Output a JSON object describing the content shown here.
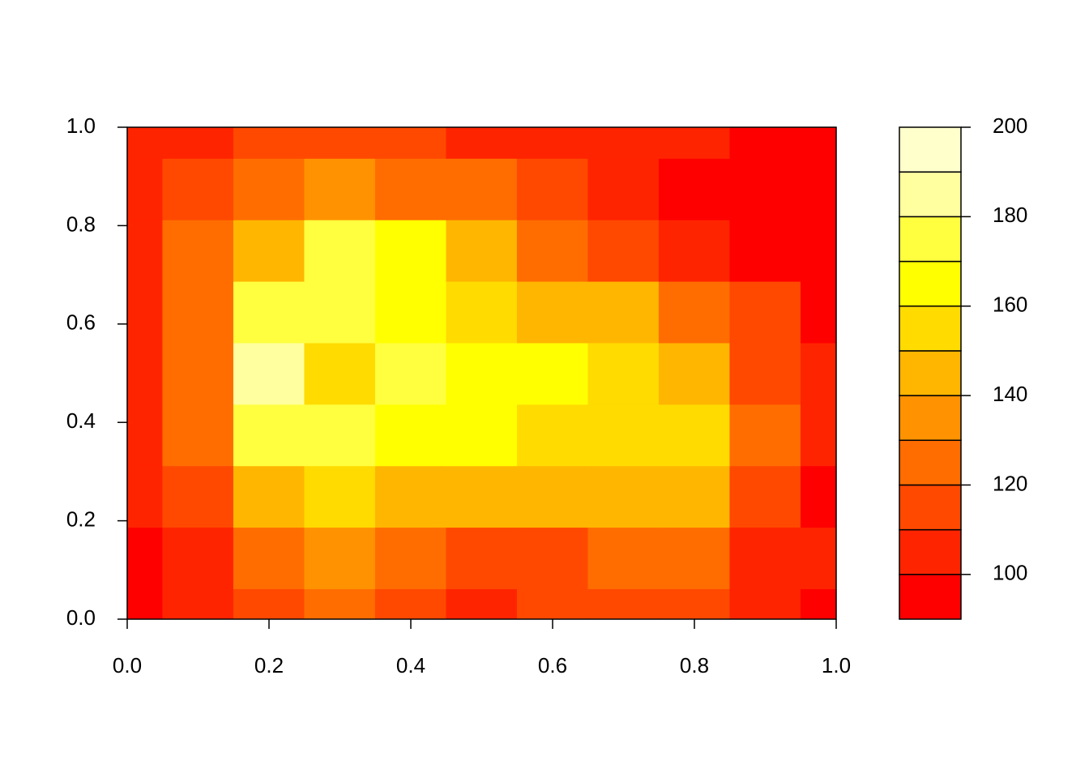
{
  "chart_data": {
    "type": "filled-contour",
    "x": [
      0,
      0.1,
      0.2,
      0.3,
      0.4,
      0.5,
      0.6,
      0.7,
      0.8,
      0.9,
      1
    ],
    "y": [
      0,
      0.125,
      0.25,
      0.375,
      0.5,
      0.625,
      0.75,
      0.875,
      1
    ],
    "z": [
      [
        98,
        105,
        112,
        120,
        112,
        105,
        110,
        112,
        110,
        100,
        95
      ],
      [
        98,
        105,
        125,
        138,
        128,
        112,
        118,
        125,
        125,
        108,
        102
      ],
      [
        100,
        118,
        140,
        150,
        145,
        142,
        142,
        148,
        145,
        118,
        98
      ],
      [
        105,
        125,
        178,
        178,
        168,
        160,
        155,
        152,
        150,
        125,
        105
      ],
      [
        105,
        128,
        188,
        158,
        178,
        168,
        165,
        155,
        140,
        118,
        105
      ],
      [
        108,
        128,
        175,
        172,
        168,
        158,
        145,
        140,
        125,
        110,
        98
      ],
      [
        108,
        122,
        145,
        172,
        165,
        140,
        125,
        118,
        108,
        98,
        95
      ],
      [
        105,
        112,
        122,
        132,
        128,
        120,
        112,
        105,
        98,
        95,
        95
      ],
      [
        105,
        105,
        112,
        118,
        115,
        108,
        105,
        105,
        100,
        95,
        95
      ]
    ],
    "levels": [
      90,
      100,
      110,
      120,
      130,
      140,
      150,
      160,
      170,
      180,
      190,
      200
    ],
    "colors": [
      "#FF0000",
      "#FF2400",
      "#FF4900",
      "#FF6D00",
      "#FF9200",
      "#FFB600",
      "#FFDB00",
      "#FFFF00",
      "#FFFF40",
      "#FFFF9F",
      "#FFFFCC"
    ],
    "xlim": [
      0,
      1
    ],
    "ylim": [
      0,
      1
    ],
    "zlim": [
      90,
      200
    ],
    "xticks": [
      {
        "value": 0,
        "label": "0.0"
      },
      0.2,
      0.4,
      0.6,
      0.8,
      {
        "value": 1,
        "label": "1.0"
      }
    ],
    "yticks": [
      {
        "value": 0,
        "label": "0.0"
      },
      0.2,
      0.4,
      0.6,
      0.8,
      {
        "value": 1,
        "label": "1.0"
      }
    ],
    "zticks": [
      100,
      120,
      140,
      160,
      180,
      200
    ]
  }
}
